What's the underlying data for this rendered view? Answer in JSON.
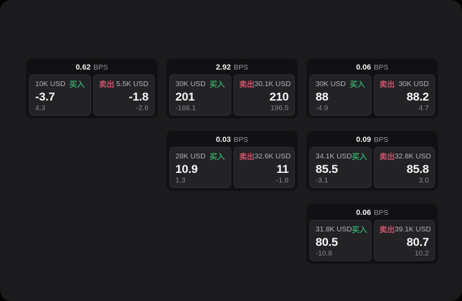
{
  "labels": {
    "bps": "BPS",
    "buy": "买入",
    "sell": "卖出"
  },
  "colors": {
    "buy_green": "#35a267",
    "sell_red": "#c9536b",
    "panel_bg": "#1b1b1d",
    "card_bg": "#111113",
    "tile_bg": "#232326"
  },
  "cards": [
    {
      "bps": "0.62",
      "buy": {
        "size": "10K USD",
        "price": "-3.7",
        "change": "4.3"
      },
      "sell": {
        "size": "5.5K USD",
        "price": "-1.8",
        "change": "-2.6"
      }
    },
    {
      "bps": "2.92",
      "buy": {
        "size": "30K USD",
        "price": "201",
        "change": "-188.1"
      },
      "sell": {
        "size": "30.1K USD",
        "price": "210",
        "change": "196.5"
      }
    },
    {
      "bps": "0.06",
      "buy": {
        "size": "30K USD",
        "price": "88",
        "change": "-4.9"
      },
      "sell": {
        "size": "30K USD",
        "price": "88.2",
        "change": "4.7"
      }
    },
    {
      "bps": "0.03",
      "buy": {
        "size": "28K USD",
        "price": "10.9",
        "change": "1.3"
      },
      "sell": {
        "size": "32.6K USD",
        "price": "11",
        "change": "-1.8"
      }
    },
    {
      "bps": "0.09",
      "buy": {
        "size": "34.1K USD",
        "price": "85.5",
        "change": "-3.1"
      },
      "sell": {
        "size": "32.8K USD",
        "price": "85.8",
        "change": "3.0"
      }
    },
    {
      "bps": "0.06",
      "buy": {
        "size": "31.8K USD",
        "price": "80.5",
        "change": "-10.8"
      },
      "sell": {
        "size": "39.1K USD",
        "price": "80.7",
        "change": "10.2"
      }
    }
  ]
}
